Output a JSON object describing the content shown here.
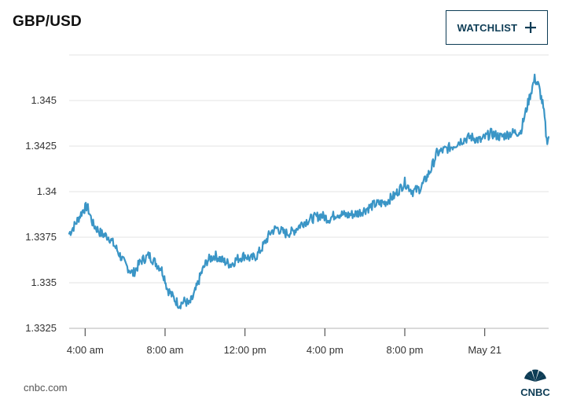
{
  "header": {
    "title": "GBP/USD",
    "watchlist_label": "WATCHLIST",
    "watchlist_icon": "plus-icon"
  },
  "footer": {
    "source": "cnbc.com",
    "logo_text": "CNBC",
    "logo_icon": "peacock-icon"
  },
  "colors": {
    "line": "#3a95c6",
    "grid": "#e3e3e3",
    "axis": "#b5b5b5",
    "accent": "#0d3c55"
  },
  "chart_data": {
    "type": "line",
    "title": "GBP/USD",
    "xlabel": "",
    "ylabel": "",
    "grid": true,
    "x_ticks": [
      "4:00 am",
      "8:00 am",
      "12:00 pm",
      "4:00 pm",
      "8:00 pm",
      "May 21"
    ],
    "y_ticks": [
      "1.345",
      "1.3425",
      "1.34",
      "1.3375",
      "1.335",
      "1.3325"
    ],
    "y_tick_values": [
      1.345,
      1.3425,
      1.34,
      1.3375,
      1.335,
      1.3325
    ],
    "xlim_hours": [
      3.2,
      27.2
    ],
    "ylim": [
      1.3325,
      1.3475
    ],
    "series": [
      {
        "name": "",
        "hours": [
          3.2,
          3.5,
          3.9,
          4.1,
          4.4,
          4.8,
          5.2,
          5.6,
          6.0,
          6.4,
          6.8,
          7.2,
          7.6,
          7.8,
          8.0,
          8.1,
          8.4,
          8.7,
          9.0,
          9.2,
          9.4,
          9.6,
          9.8,
          10.1,
          10.5,
          10.9,
          11.3,
          11.6,
          12.0,
          12.3,
          12.6,
          12.9,
          13.3,
          13.6,
          14.0,
          14.4,
          14.9,
          15.3,
          15.8,
          16.2,
          16.6,
          17.1,
          17.6,
          18.0,
          18.5,
          19.0,
          19.5,
          20.0,
          20.4,
          20.8,
          21.3,
          21.6,
          22.0,
          22.4,
          22.8,
          23.3,
          23.8,
          24.3,
          24.8,
          25.3,
          25.8,
          26.2,
          26.5,
          26.7,
          26.9,
          27.0,
          27.1,
          27.2
        ],
        "values": [
          1.3377,
          1.3382,
          1.339,
          1.3392,
          1.3382,
          1.3377,
          1.3375,
          1.3368,
          1.336,
          1.3355,
          1.3362,
          1.3365,
          1.336,
          1.3358,
          1.3352,
          1.3347,
          1.3342,
          1.3338,
          1.334,
          1.3338,
          1.3342,
          1.3348,
          1.3355,
          1.3362,
          1.3365,
          1.3362,
          1.336,
          1.3363,
          1.3365,
          1.3363,
          1.3365,
          1.337,
          1.3378,
          1.338,
          1.3377,
          1.3378,
          1.3383,
          1.3385,
          1.3387,
          1.3385,
          1.3388,
          1.3387,
          1.3388,
          1.339,
          1.3393,
          1.3394,
          1.3398,
          1.3405,
          1.34,
          1.3402,
          1.3412,
          1.3421,
          1.3423,
          1.3425,
          1.3428,
          1.343,
          1.3428,
          1.3432,
          1.343,
          1.3432,
          1.3433,
          1.345,
          1.3462,
          1.3458,
          1.3448,
          1.344,
          1.3428,
          1.343
        ]
      }
    ]
  }
}
